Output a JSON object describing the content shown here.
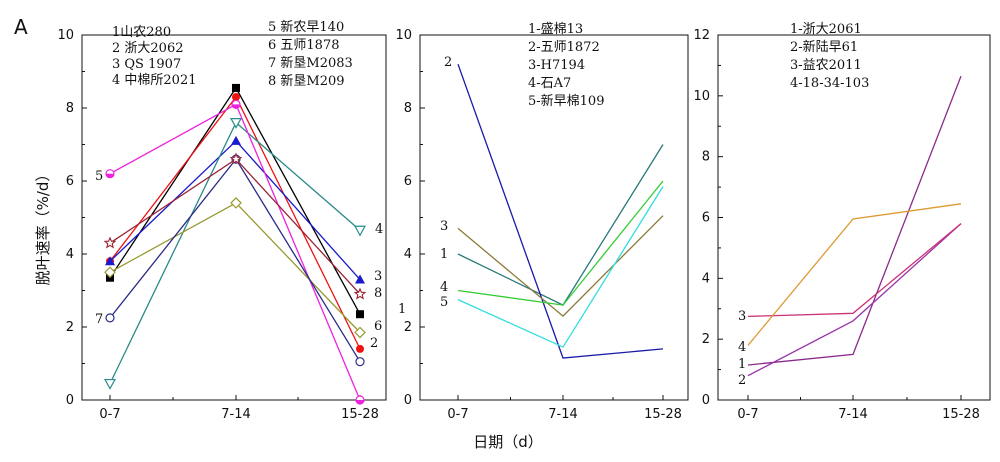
{
  "figure": {
    "panel_letter": "A",
    "ylabel": "脱叶速率（%/d）",
    "xlabel": "日期（d）"
  },
  "chart_data": [
    {
      "type": "line",
      "categories": [
        "0-7",
        "7-14",
        "15-28"
      ],
      "ylim": [
        0,
        10
      ],
      "yticks": [
        0,
        2,
        4,
        6,
        8,
        10
      ],
      "legend": [
        "1山农280",
        "2 浙大2062",
        "3 QS 1907",
        "4 中棉所2021",
        "5 新农早140",
        "6 五师1878",
        "7 新垦M2083",
        "8 新垦M209"
      ],
      "series": [
        {
          "name": "1",
          "label": "1",
          "values": [
            3.35,
            8.55,
            2.35
          ],
          "color": "#000000",
          "marker": "square-filled"
        },
        {
          "name": "2",
          "label": "2",
          "values": [
            3.8,
            8.3,
            1.4
          ],
          "color": "#ee1111",
          "marker": "circle-filled"
        },
        {
          "name": "3",
          "label": "3",
          "values": [
            3.8,
            7.1,
            3.3
          ],
          "color": "#1a1acc",
          "marker": "triangle-filled"
        },
        {
          "name": "4",
          "label": "4",
          "values": [
            0.45,
            7.6,
            4.65
          ],
          "color": "#2a8a8a",
          "marker": "triangle-down-open"
        },
        {
          "name": "5",
          "label": "5",
          "values": [
            6.2,
            8.1,
            0.0
          ],
          "color": "#ee22dd",
          "marker": "half-circle"
        },
        {
          "name": "6",
          "label": "6",
          "values": [
            3.5,
            5.4,
            1.85
          ],
          "color": "#9a9a33",
          "marker": "diamond-open"
        },
        {
          "name": "7",
          "label": "7",
          "values": [
            2.25,
            6.6,
            1.05
          ],
          "color": "#2a2a88",
          "marker": "circle-open"
        },
        {
          "name": "8",
          "label": "8",
          "values": [
            4.3,
            6.6,
            2.9
          ],
          "color": "#992233",
          "marker": "star-open"
        }
      ]
    },
    {
      "type": "line",
      "categories": [
        "0-7",
        "7-14",
        "15-28"
      ],
      "ylim": [
        0,
        10
      ],
      "yticks": [
        0,
        2,
        4,
        6,
        8,
        10
      ],
      "legend": [
        "1-盛棉13",
        "2-五师1872",
        "3-H7194",
        "4-石A7",
        "5-新早棉109"
      ],
      "series": [
        {
          "name": "1",
          "label": "1",
          "values": [
            4.0,
            2.6,
            7.0
          ],
          "color": "#2a7a7a"
        },
        {
          "name": "2",
          "label": "2",
          "values": [
            9.2,
            1.15,
            1.4
          ],
          "color": "#1a1aaa"
        },
        {
          "name": "3",
          "label": "3",
          "values": [
            4.7,
            2.3,
            5.05
          ],
          "color": "#8a7a3a"
        },
        {
          "name": "4",
          "label": "4",
          "values": [
            3.0,
            2.6,
            6.0
          ],
          "color": "#33cc33"
        },
        {
          "name": "5",
          "label": "5",
          "values": [
            2.75,
            1.45,
            5.85
          ],
          "color": "#33dddd"
        }
      ]
    },
    {
      "type": "line",
      "categories": [
        "0-7",
        "7-14",
        "15-28"
      ],
      "ylim": [
        0,
        12
      ],
      "yticks": [
        0,
        2,
        4,
        6,
        8,
        10,
        12
      ],
      "legend": [
        "1-浙大2061",
        "2-新陆早61",
        "3-益农2011",
        "4-18-34-103"
      ],
      "series": [
        {
          "name": "1",
          "label": "1",
          "values": [
            1.15,
            1.5,
            10.65
          ],
          "color": "#8a2a8a"
        },
        {
          "name": "2",
          "label": "2",
          "values": [
            0.8,
            2.6,
            5.8
          ],
          "color": "#9933aa"
        },
        {
          "name": "3",
          "label": "3",
          "values": [
            2.75,
            2.85,
            5.8
          ],
          "color": "#cc3377"
        },
        {
          "name": "4",
          "label": "4",
          "values": [
            1.8,
            5.95,
            6.45
          ],
          "color": "#dd9933"
        }
      ]
    }
  ]
}
